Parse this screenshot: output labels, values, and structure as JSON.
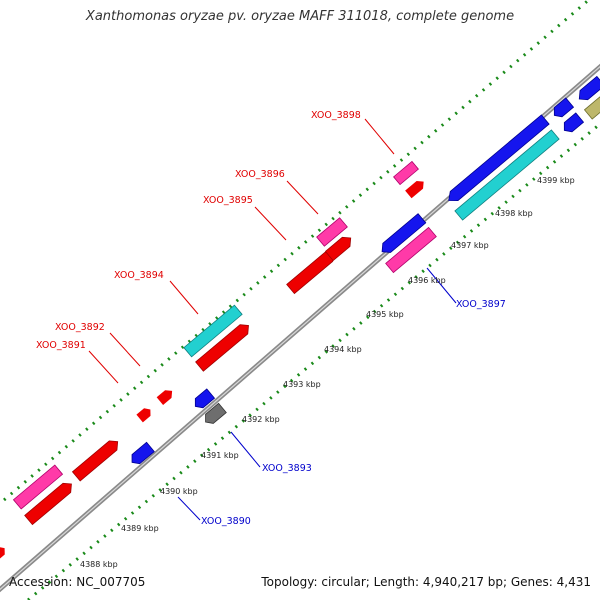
{
  "title": "Xanthomonas oryzae pv. oryzae MAFF 311018, complete genome",
  "footer": {
    "accession": "Accession: NC_007705",
    "summary": "Topology: circular; Length: 4,940,217 bp; Genes: 4,431"
  },
  "colors": {
    "plus_label": "#e00000",
    "minus_label": "#0000cc",
    "tick": "#1a8a1a",
    "backbone": "#8a8a8a"
  },
  "kbp_labels": [
    "4388 kbp",
    "4389 kbp",
    "4390 kbp",
    "4391 kbp",
    "4392 kbp",
    "4393 kbp",
    "4394 kbp",
    "4395 kbp",
    "4396 kbp",
    "4397 kbp",
    "4398 kbp",
    "4399 kbp"
  ],
  "genes_plus": [
    {
      "label": "XOO_3891"
    },
    {
      "label": "XOO_3892"
    },
    {
      "label": "XOO_3894"
    },
    {
      "label": "XOO_3895"
    },
    {
      "label": "XOO_3896"
    },
    {
      "label": "XOO_3898"
    }
  ],
  "genes_minus": [
    {
      "label": "XOO_3890"
    },
    {
      "label": "XOO_3893"
    },
    {
      "label": "XOO_3897"
    }
  ]
}
